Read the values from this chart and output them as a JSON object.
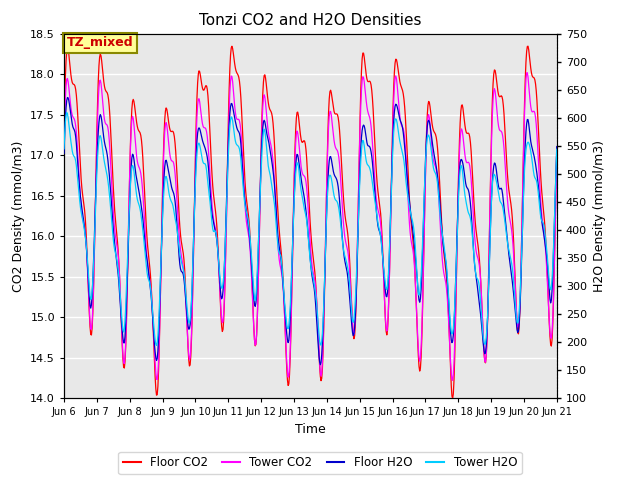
{
  "title": "Tonzi CO2 and H2O Densities",
  "xlabel": "Time",
  "ylabel_left": "CO2 Density (mmol/m3)",
  "ylabel_right": "H2O Density (mmol/m3)",
  "ylim_left": [
    14.0,
    18.5
  ],
  "ylim_right": [
    100,
    750
  ],
  "yticks_left": [
    14.0,
    14.5,
    15.0,
    15.5,
    16.0,
    16.5,
    17.0,
    17.5,
    18.0,
    18.5
  ],
  "yticks_right": [
    100,
    150,
    200,
    250,
    300,
    350,
    400,
    450,
    500,
    550,
    600,
    650,
    700,
    750
  ],
  "x_tick_labels": [
    "Jun 6",
    "Jun 7",
    "Jun 8",
    "Jun 9",
    "Jun 10",
    "Jun 11",
    "Jun 12",
    "Jun 13",
    "Jun 14",
    "Jun 15",
    "Jun 16",
    "Jun 17",
    "Jun 18",
    "Jun 19",
    "Jun 20",
    "Jun 21"
  ],
  "annotation_text": "TZ_mixed",
  "annotation_color": "#cc0000",
  "annotation_bg": "#ffff99",
  "annotation_border": "#888800",
  "legend_entries": [
    "Floor CO2",
    "Tower CO2",
    "Floor H2O",
    "Tower H2O"
  ],
  "line_colors": [
    "#ff0000",
    "#ff00ff",
    "#0000cc",
    "#00ccff"
  ],
  "background_color": "#e8e8e8",
  "grid_color": "#ffffff",
  "n_points": 720,
  "figsize": [
    6.4,
    4.8
  ],
  "dpi": 100
}
